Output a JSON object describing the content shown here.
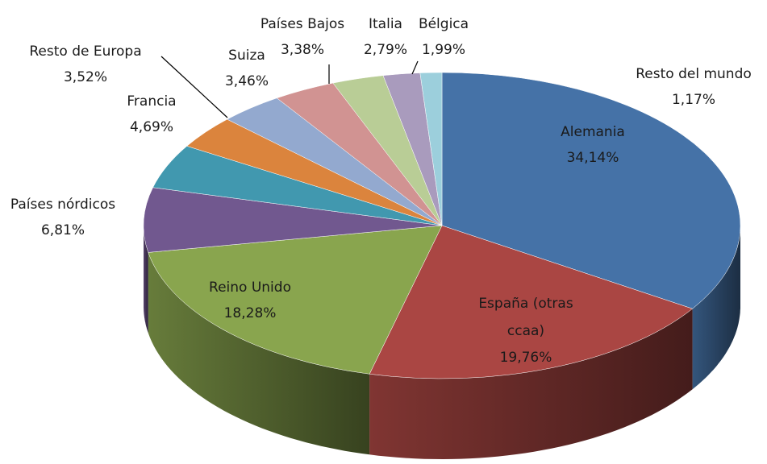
{
  "chart_data": {
    "type": "pie",
    "categories": [
      "Alemania",
      "España (otras ccaa)",
      "Reino Unido",
      "Países nórdicos",
      "Francia",
      "Resto de Europa",
      "Suiza",
      "Países Bajos",
      "Italia",
      "Bélgica",
      "Resto del mundo"
    ],
    "values": [
      34.14,
      19.76,
      18.28,
      6.81,
      4.69,
      3.52,
      3.46,
      3.38,
      2.79,
      1.99,
      1.17
    ],
    "value_labels": [
      "34,14%",
      "19,76%",
      "18,28%",
      "6,81%",
      "4,69%",
      "3,52%",
      "3,46%",
      "3,38%",
      "2,79%",
      "1,99%",
      "1,17%"
    ],
    "colors": [
      "#4572a7",
      "#aa4643",
      "#89a54e",
      "#71588f",
      "#4198af",
      "#db843d",
      "#93a9cf",
      "#d19392",
      "#b9cd96",
      "#a99bbd",
      "#9ccfdc"
    ]
  }
}
